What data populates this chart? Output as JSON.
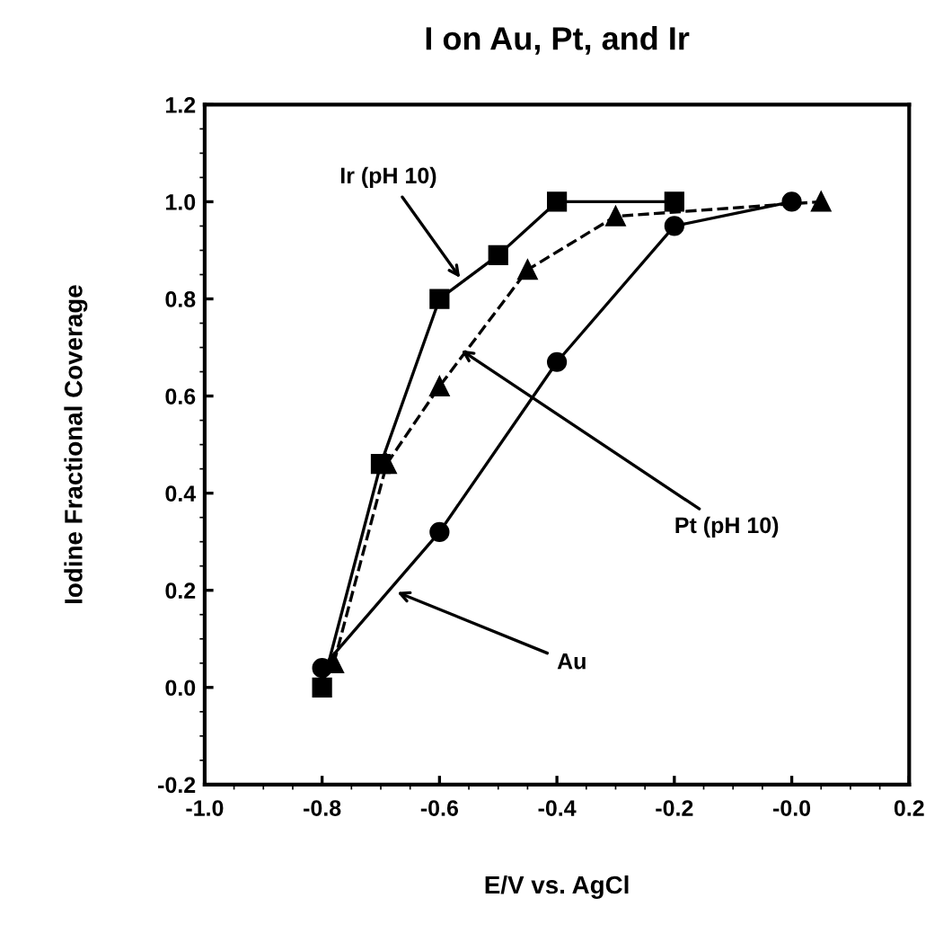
{
  "chart_data": {
    "type": "line",
    "title": "I on Au, Pt, and Ir",
    "xlabel": "E/V vs. AgCl",
    "ylabel": "Iodine Fractional Coverage",
    "series": [
      {
        "color": "#000000",
        "marker": "square",
        "line_style": "solid",
        "x": [
          -0.8,
          -0.7,
          -0.6,
          -0.5,
          -0.4,
          -0.2
        ],
        "values": [
          0.0,
          0.46,
          0.8,
          0.89,
          1.0,
          1.0
        ]
      },
      {
        "color": "#000000",
        "marker": "triangle",
        "line_style": "dashed",
        "x": [
          -0.78,
          -0.69,
          -0.6,
          -0.45,
          -0.3,
          0.05
        ],
        "values": [
          0.05,
          0.46,
          0.62,
          0.86,
          0.97,
          1.0
        ]
      },
      {
        "color": "#000000",
        "marker": "circle",
        "line_style": "solid",
        "x": [
          -0.8,
          -0.6,
          -0.4,
          -0.2,
          0.0
        ],
        "values": [
          0.04,
          0.32,
          0.67,
          0.95,
          1.0
        ]
      }
    ],
    "annotations": [
      {
        "text": "Ir (pH 10)",
        "x": -0.56,
        "y": 0.835
      },
      {
        "text": "Pt (pH 10)",
        "x": -0.57,
        "y": 0.7
      },
      {
        "text": "Au",
        "x": -0.68,
        "y": 0.2
      }
    ],
    "xlim": [
      -1.0,
      0.2
    ],
    "xticks": [
      {
        "value": -1.0,
        "label": "-1.0"
      },
      -0.8,
      -0.6,
      -0.4,
      -0.2,
      {
        "value": 0.0,
        "label": "-0.0"
      },
      0.2
    ],
    "ylim": [
      -0.2,
      1.2
    ],
    "yticks": [
      -0.2,
      {
        "value": 0.0,
        "label": "0.0"
      },
      0.2,
      0.4,
      0.6,
      0.8,
      {
        "value": 1.0,
        "label": "1.0"
      },
      1.2
    ],
    "grid": false,
    "legend": false
  }
}
